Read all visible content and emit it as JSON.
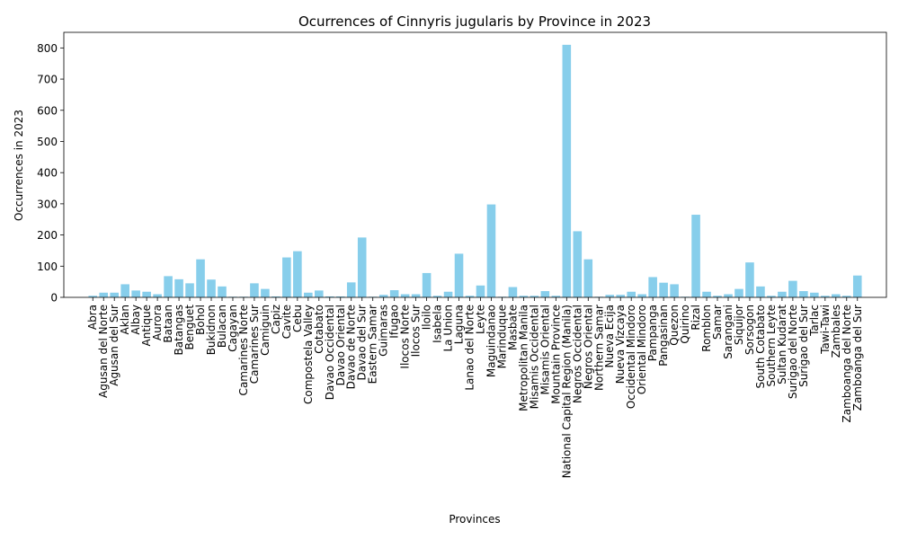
{
  "chart_data": {
    "type": "bar",
    "title": "Ocurrences of Cinnyris jugularis by Province in 2023",
    "xlabel": "Provinces",
    "ylabel": "Occurrences in 2023",
    "ylim": [
      0,
      850
    ],
    "yticks": [
      0,
      100,
      200,
      300,
      400,
      500,
      600,
      700,
      800
    ],
    "grid": false,
    "bar_color": "#87ceeb",
    "categories": [
      "Abra",
      "Agusan del Norte",
      "Agusan del Sur",
      "Aklan",
      "Albay",
      "Antique",
      "Aurora",
      "Bataan",
      "Batangas",
      "Benguet",
      "Bohol",
      "Bukidnon",
      "Bulacan",
      "Cagayan",
      "Camarines Norte",
      "Camarines Sur",
      "Camiguin",
      "Capiz",
      "Cavite",
      "Cebu",
      "Compostela Valley",
      "Cotabato",
      "Davao Occidental",
      "Davao Oriental",
      "Davao de Norte",
      "Davao del Sur",
      "Eastern Samar",
      "Guimaras",
      "Ifugao",
      "Ilocos Norte",
      "Ilocos Sur",
      "Iloilo",
      "Isabela",
      "La Union",
      "Laguna",
      "Lanao del Norte",
      "Leyte",
      "Maguindanao",
      "Marinduque",
      "Masbate",
      "Metropolitan Manila",
      "Misamis Occidental",
      "Misamis Oriental",
      "Mountain Province",
      "National Capital Region (Manila)",
      "Negros Occidental",
      "Negros Oriental",
      "Northern Samar",
      "Nueva Ecija",
      "Nueva Vizcaya",
      "Occidental Mindoro",
      "Oriental Mindoro",
      "Pampanga",
      "Pangasinan",
      "Quezon",
      "Quirino",
      "Rizal",
      "Romblon",
      "Samar",
      "Sarangani",
      "Siquijor",
      "Sorsogon",
      "South Cotabato",
      "Southern Leyte",
      "Sultan Kudarat",
      "Surigao del Norte",
      "Surigao del Sur",
      "Tarlac",
      "Tawi-Tawi",
      "Zambales",
      "Zamboanga del Norte",
      "Zamboanga del Sur"
    ],
    "values": [
      5,
      15,
      15,
      42,
      22,
      18,
      10,
      68,
      58,
      45,
      122,
      57,
      35,
      2,
      2,
      45,
      27,
      3,
      128,
      148,
      15,
      22,
      3,
      3,
      48,
      192,
      2,
      8,
      23,
      10,
      10,
      78,
      5,
      18,
      140,
      5,
      38,
      298,
      2,
      33,
      5,
      5,
      20,
      5,
      810,
      212,
      122,
      2,
      8,
      8,
      18,
      10,
      65,
      47,
      42,
      2,
      265,
      18,
      5,
      10,
      27,
      112,
      35,
      5,
      18,
      53,
      20,
      15,
      5,
      10,
      5,
      70
    ]
  }
}
